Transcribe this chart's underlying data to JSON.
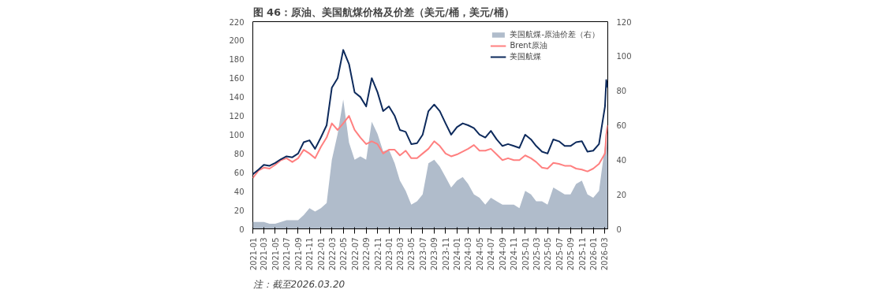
{
  "chart_data": {
    "type": "line",
    "title": "图 46：原油、美国航煤价格及价差（美元/桶，美元/桶）",
    "annotations": [
      "注：截至2026.03.20"
    ],
    "x": [
      "2021-01",
      "2021-02",
      "2021-03",
      "2021-04",
      "2021-05",
      "2021-06",
      "2021-07",
      "2021-08",
      "2021-09",
      "2021-10",
      "2021-11",
      "2021-12",
      "2022-01",
      "2022-02",
      "2022-03",
      "2022-04",
      "2022-05",
      "2022-06",
      "2022-07",
      "2022-08",
      "2022-09",
      "2022-10",
      "2022-11",
      "2022-12",
      "2023-01",
      "2023-02",
      "2023-03",
      "2023-04",
      "2023-05",
      "2023-06",
      "2023-07",
      "2023-08",
      "2023-09",
      "2023-10",
      "2023-11",
      "2023-12",
      "2024-01",
      "2024-02",
      "2024-03",
      "2024-04",
      "2024-05",
      "2024-06",
      "2024-07",
      "2024-08",
      "2024-09",
      "2024-10",
      "2024-11",
      "2024-12",
      "2025-01",
      "2025-02",
      "2025-03",
      "2025-04",
      "2025-05",
      "2025-06",
      "2025-07",
      "2025-08",
      "2025-09",
      "2025-10",
      "2025-11",
      "2025-12",
      "2026-01",
      "2026-02",
      "2026-03-05",
      "2026-03-12",
      "2026-03-20"
    ],
    "series": [
      {
        "name": "美国航煤-原油价差（右）",
        "type": "area",
        "axis": "y2",
        "color": "#b0bccb",
        "values": [
          4,
          4,
          4,
          3,
          3,
          4,
          5,
          5,
          5,
          8,
          12,
          10,
          12,
          15,
          40,
          55,
          75,
          50,
          40,
          42,
          40,
          62,
          55,
          45,
          46,
          38,
          28,
          22,
          14,
          16,
          20,
          38,
          40,
          36,
          30,
          24,
          28,
          30,
          26,
          20,
          18,
          14,
          18,
          16,
          14,
          14,
          14,
          12,
          22,
          20,
          16,
          16,
          14,
          24,
          22,
          20,
          20,
          26,
          28,
          20,
          18,
          22,
          48,
          60,
          42
        ]
      },
      {
        "name": "Brent原油",
        "color": "#ff8080",
        "values": [
          54,
          62,
          65,
          64,
          68,
          73,
          75,
          71,
          75,
          84,
          80,
          75,
          87,
          97,
          112,
          105,
          112,
          120,
          105,
          97,
          90,
          93,
          90,
          80,
          84,
          84,
          78,
          83,
          75,
          75,
          80,
          85,
          93,
          88,
          80,
          77,
          79,
          82,
          85,
          89,
          83,
          83,
          85,
          79,
          73,
          75,
          73,
          73,
          78,
          75,
          71,
          65,
          64,
          70,
          69,
          67,
          67,
          64,
          63,
          61,
          64,
          69,
          80,
          100,
          110
        ]
      },
      {
        "name": "美国航煤",
        "color": "#0d2a5c",
        "values": [
          58,
          63,
          68,
          67,
          70,
          74,
          77,
          76,
          80,
          92,
          94,
          85,
          97,
          110,
          150,
          160,
          190,
          175,
          145,
          140,
          130,
          160,
          145,
          125,
          130,
          120,
          105,
          103,
          90,
          91,
          100,
          125,
          132,
          125,
          112,
          100,
          108,
          112,
          110,
          107,
          100,
          97,
          104,
          95,
          88,
          90,
          88,
          86,
          100,
          95,
          88,
          82,
          80,
          95,
          93,
          88,
          88,
          92,
          93,
          82,
          83,
          90,
          130,
          158,
          150
        ]
      }
    ],
    "xlim": [
      "2021-01",
      "2026-03-20"
    ],
    "xticks": [
      "2021-01",
      "2021-03",
      "2021-05",
      "2021-07",
      "2021-09",
      "2021-11",
      "2022-01",
      "2022-03",
      "2022-05",
      "2022-07",
      "2022-09",
      "2022-11",
      "2023-01",
      "2023-03",
      "2023-05",
      "2023-07",
      "2023-09",
      "2023-11",
      "2024-01",
      "2024-03",
      "2024-05",
      "2024-07",
      "2024-09",
      "2024-11",
      "2025-01",
      "2025-03",
      "2025-05",
      "2025-07",
      "2025-09",
      "2025-11",
      "2026-01",
      "2026-03"
    ],
    "ylim": [
      0,
      220
    ],
    "yticks": [
      0,
      20,
      40,
      60,
      80,
      100,
      120,
      140,
      160,
      180,
      200,
      220
    ],
    "y2lim": [
      0,
      120
    ],
    "y2ticks": [
      0,
      20,
      40,
      60,
      80,
      100,
      120
    ],
    "grid": false,
    "legend": "top right"
  }
}
